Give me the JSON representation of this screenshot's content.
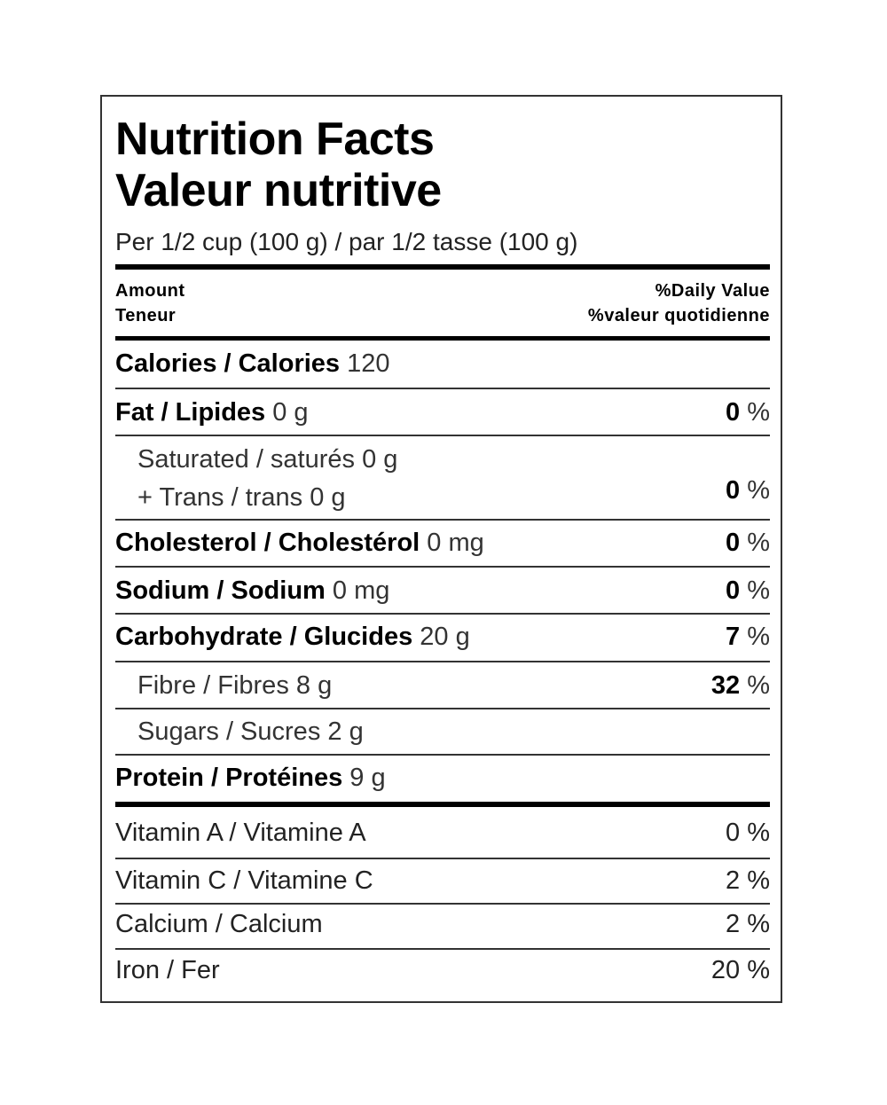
{
  "title": [
    "Nutrition Facts",
    "Valeur nutritive"
  ],
  "serving": "Per 1/2 cup (100 g) / par 1/2 tasse (100 g)",
  "header": {
    "amount": "Amount",
    "amount_fr": "Teneur",
    "dv": "%Daily Value",
    "dv_fr": "%valeur quotidienne"
  },
  "calories": {
    "label": "Calories / Calories",
    "amount": "120"
  },
  "fat": {
    "label": "Fat / Lipides",
    "amount": "0 g",
    "dv": "0",
    "dv_unit": "%"
  },
  "saturated": {
    "label": "Saturated / saturés",
    "amount": "0 g",
    "label2": "+ Trans / trans",
    "amount2": "0 g",
    "dv": "0",
    "dv_unit": "%"
  },
  "cholesterol": {
    "label": "Cholesterol / Cholestérol",
    "amount": "0 mg",
    "dv": "0",
    "dv_unit": "%"
  },
  "sodium": {
    "label": "Sodium / Sodium",
    "amount": "0 mg",
    "dv": "0",
    "dv_unit": "%"
  },
  "carbohydrate": {
    "label": "Carbohydrate / Glucides",
    "amount": "20 g",
    "dv": "7",
    "dv_unit": "%"
  },
  "fibre": {
    "label": "Fibre / Fibres",
    "amount": "8 g",
    "dv": "32",
    "dv_unit": "%"
  },
  "sugars": {
    "label": "Sugars / Sucres",
    "amount": "2 g"
  },
  "protein": {
    "label": "Protein / Protéines",
    "amount": "9 g"
  },
  "vitamins": [
    {
      "label": "Vitamin A / Vitamine A",
      "dv": "0 %"
    },
    {
      "label": "Vitamin C / Vitamine C",
      "dv": "2 %"
    },
    {
      "label": "Calcium / Calcium",
      "dv": "2 %"
    },
    {
      "label": "Iron / Fer",
      "dv": "20 %"
    }
  ]
}
